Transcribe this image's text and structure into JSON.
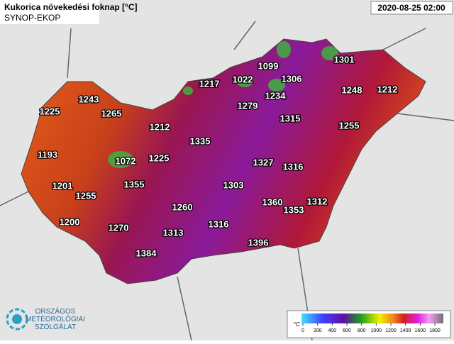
{
  "header": {
    "title": "Kukorica növekedési foknap [°C]",
    "subtitle": "SYNOP-EKOP",
    "date": "2020-08-25 02:00"
  },
  "stations": [
    1099,
    1301,
    1217,
    1022,
    1306,
    1248,
    1212,
    1243,
    1234,
    1279,
    1225,
    1265,
    1315,
    1212,
    1255,
    1335,
    1193,
    1072,
    1225,
    1327,
    1316,
    1201,
    1355,
    1303,
    1255,
    1360,
    1312,
    1260,
    1353,
    1200,
    1270,
    1316,
    1313,
    1396,
    1384
  ],
  "legend": {
    "unit": "°C",
    "ticks": [
      0,
      200,
      400,
      600,
      800,
      1000,
      1200,
      1400,
      1600,
      1800
    ]
  },
  "logo": {
    "line1": "ORSZÁGOS",
    "line2": "METEOROLÓGIAI",
    "line3": "SZOLGÁLAT"
  }
}
